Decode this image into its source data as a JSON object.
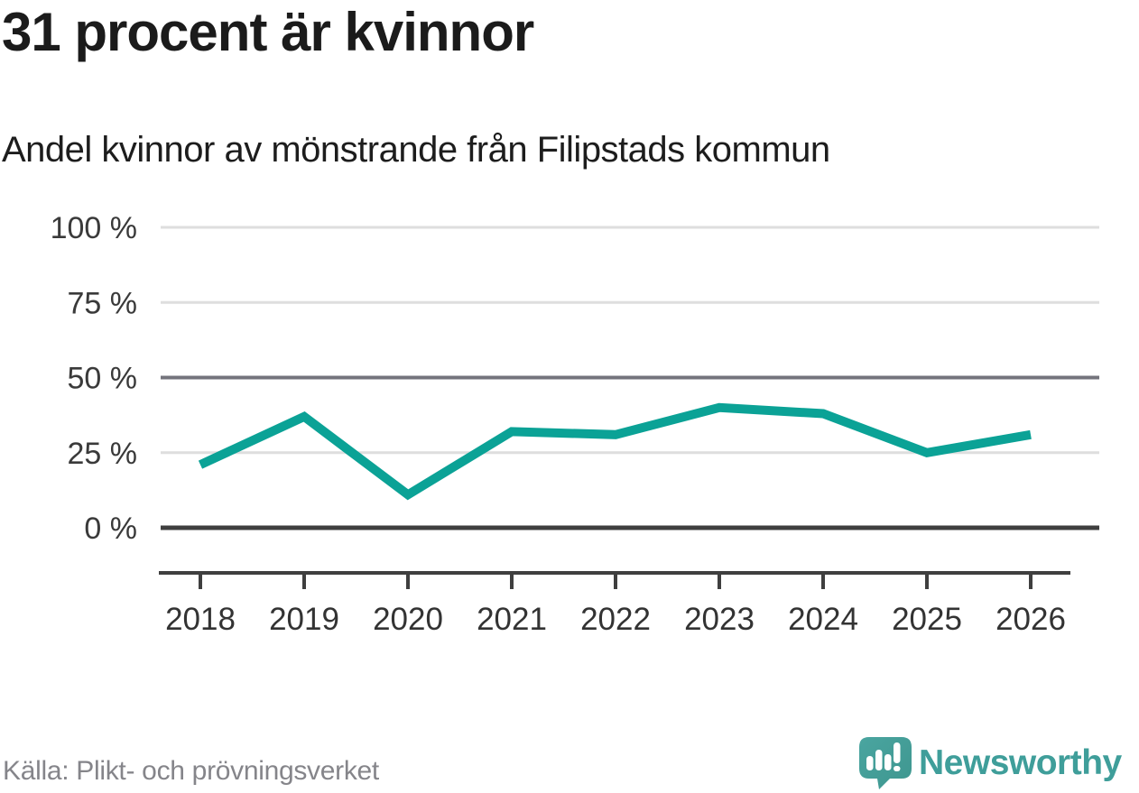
{
  "header": {
    "title": "31 procent är kvinnor",
    "subtitle": "Andel kvinnor av mönstrande från Filipstads kommun"
  },
  "chart_data": {
    "type": "line",
    "title": "31 procent är kvinnor",
    "subtitle": "Andel kvinnor av mönstrande från Filipstads kommun",
    "x": [
      "2018",
      "2019",
      "2020",
      "2021",
      "2022",
      "2023",
      "2024",
      "2025",
      "2026"
    ],
    "series": [
      {
        "name": "Andel kvinnor av mönstrande",
        "values": [
          21,
          37,
          11,
          32,
          31,
          40,
          38,
          25,
          31
        ]
      }
    ],
    "unit": "%",
    "ylim": [
      0,
      100
    ],
    "yticks": [
      100,
      75,
      50,
      25,
      0
    ],
    "ytick_labels": [
      "100 %",
      "75 %",
      "50 %",
      "25 %",
      "0 %"
    ],
    "grid": true,
    "legend": false,
    "line_color": "#0ba296"
  },
  "footer": {
    "source": "Källa: Plikt- och prövningsverket",
    "brand": "Newsworthy"
  },
  "colors": {
    "line": "#0ba296",
    "grid_light": "#dedede",
    "grid_mid": "#74747c",
    "axis": "#3f3f3f",
    "text_dark": "#1b1b1b",
    "tick_text": "#3a3a3a",
    "source_text": "#85858a",
    "brand_teal": "#3f9e9a",
    "logo_fill_a": "#4aa5a0",
    "logo_fill_b": "#3e968f"
  }
}
